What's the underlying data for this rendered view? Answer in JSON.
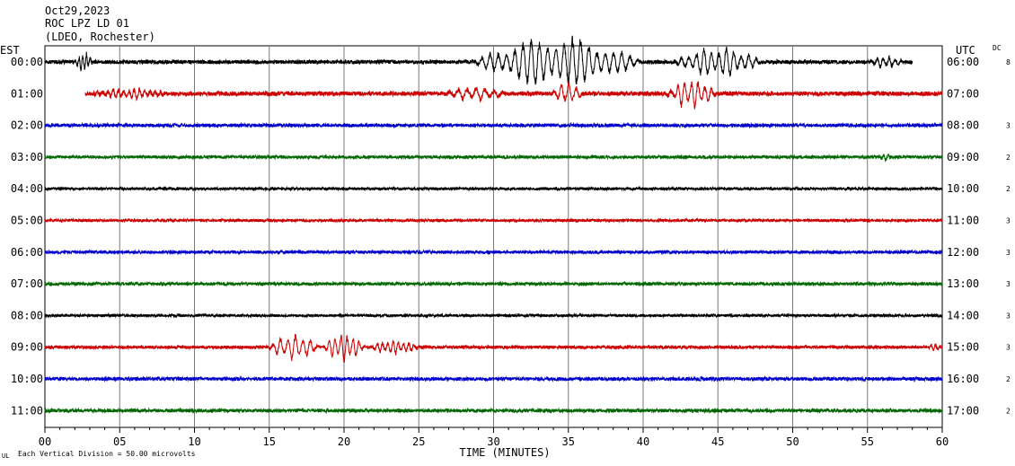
{
  "header": {
    "date": "Oct29,2023",
    "station": "ROC LPZ LD 01",
    "network": "(LDEO, Rochester)"
  },
  "chart_data": {
    "type": "line",
    "title": "",
    "xlabel": "TIME (MINUTES)",
    "xlim": [
      0,
      60
    ],
    "x_ticks": [
      "00",
      "05",
      "10",
      "15",
      "20",
      "25",
      "30",
      "35",
      "40",
      "45",
      "50",
      "55",
      "60"
    ],
    "left_axis_label": "EST",
    "right_axis_label": "UTC",
    "dc_label": "DC",
    "grid": true,
    "footer_mark": "UL",
    "scale_note": "Each Vertical Division =   50.00 microvolts",
    "colors": [
      "#000000",
      "#cc0000",
      "#0000cc",
      "#006600"
    ],
    "traces": [
      {
        "est": "00:00",
        "utc": "06:00",
        "dc": "8",
        "color": "#000000",
        "start_min": 0.0,
        "end_min": 58.0,
        "noise": 2.2,
        "events": [
          {
            "from": 2.0,
            "to": 3.2,
            "amp": 10,
            "period": 0.25
          },
          {
            "from": 28.5,
            "to": 40,
            "amp": 26,
            "period": 0.55
          },
          {
            "from": 42,
            "to": 48,
            "amp": 16,
            "period": 0.5
          },
          {
            "from": 55,
            "to": 57.5,
            "amp": 6,
            "period": 0.4
          }
        ]
      },
      {
        "est": "01:00",
        "utc": "07:00",
        "dc": "",
        "color": "#cc0000",
        "start_min": 2.7,
        "end_min": 60.0,
        "noise": 2.5,
        "events": [
          {
            "from": 3,
            "to": 8.5,
            "amp": 5,
            "period": 0.35
          },
          {
            "from": 26.5,
            "to": 31,
            "amp": 7,
            "period": 0.6
          },
          {
            "from": 33.8,
            "to": 36,
            "amp": 12,
            "period": 0.5
          },
          {
            "from": 41.5,
            "to": 45,
            "amp": 15,
            "period": 0.45
          }
        ]
      },
      {
        "est": "02:00",
        "utc": "08:00",
        "dc": "3",
        "color": "#0000cc",
        "start_min": 0.0,
        "end_min": 60.0,
        "noise": 2.0,
        "events": []
      },
      {
        "est": "03:00",
        "utc": "09:00",
        "dc": "2",
        "color": "#006600",
        "start_min": 0.0,
        "end_min": 60.0,
        "noise": 1.8,
        "events": [
          {
            "from": 55.8,
            "to": 56.6,
            "amp": 4,
            "period": 0.3
          }
        ]
      },
      {
        "est": "04:00",
        "utc": "10:00",
        "dc": "2",
        "color": "#000000",
        "start_min": 0.0,
        "end_min": 60.0,
        "noise": 1.6,
        "events": []
      },
      {
        "est": "05:00",
        "utc": "11:00",
        "dc": "3",
        "color": "#cc0000",
        "start_min": 0.0,
        "end_min": 60.0,
        "noise": 1.6,
        "events": []
      },
      {
        "est": "06:00",
        "utc": "12:00",
        "dc": "3",
        "color": "#0000cc",
        "start_min": 0.0,
        "end_min": 60.0,
        "noise": 1.8,
        "events": []
      },
      {
        "est": "07:00",
        "utc": "13:00",
        "dc": "3",
        "color": "#006600",
        "start_min": 0.0,
        "end_min": 60.0,
        "noise": 1.8,
        "events": []
      },
      {
        "est": "08:00",
        "utc": "14:00",
        "dc": "3",
        "color": "#000000",
        "start_min": 0.0,
        "end_min": 60.0,
        "noise": 1.6,
        "events": []
      },
      {
        "est": "09:00",
        "utc": "15:00",
        "dc": "3",
        "color": "#cc0000",
        "start_min": 0.0,
        "end_min": 60.0,
        "noise": 1.8,
        "events": [
          {
            "from": 14.8,
            "to": 18.5,
            "amp": 13,
            "period": 0.5
          },
          {
            "from": 18.5,
            "to": 21.5,
            "amp": 15,
            "period": 0.4
          },
          {
            "from": 21.5,
            "to": 25.2,
            "amp": 7,
            "period": 0.35
          },
          {
            "from": 59,
            "to": 60,
            "amp": 4,
            "period": 0.3
          }
        ]
      },
      {
        "est": "10:00",
        "utc": "16:00",
        "dc": "2",
        "color": "#0000cc",
        "start_min": 0.0,
        "end_min": 60.0,
        "noise": 2.0,
        "events": []
      },
      {
        "est": "11:00",
        "utc": "17:00",
        "dc": "2",
        "color": "#006600",
        "start_min": 0.0,
        "end_min": 60.0,
        "noise": 2.0,
        "events": []
      }
    ]
  }
}
